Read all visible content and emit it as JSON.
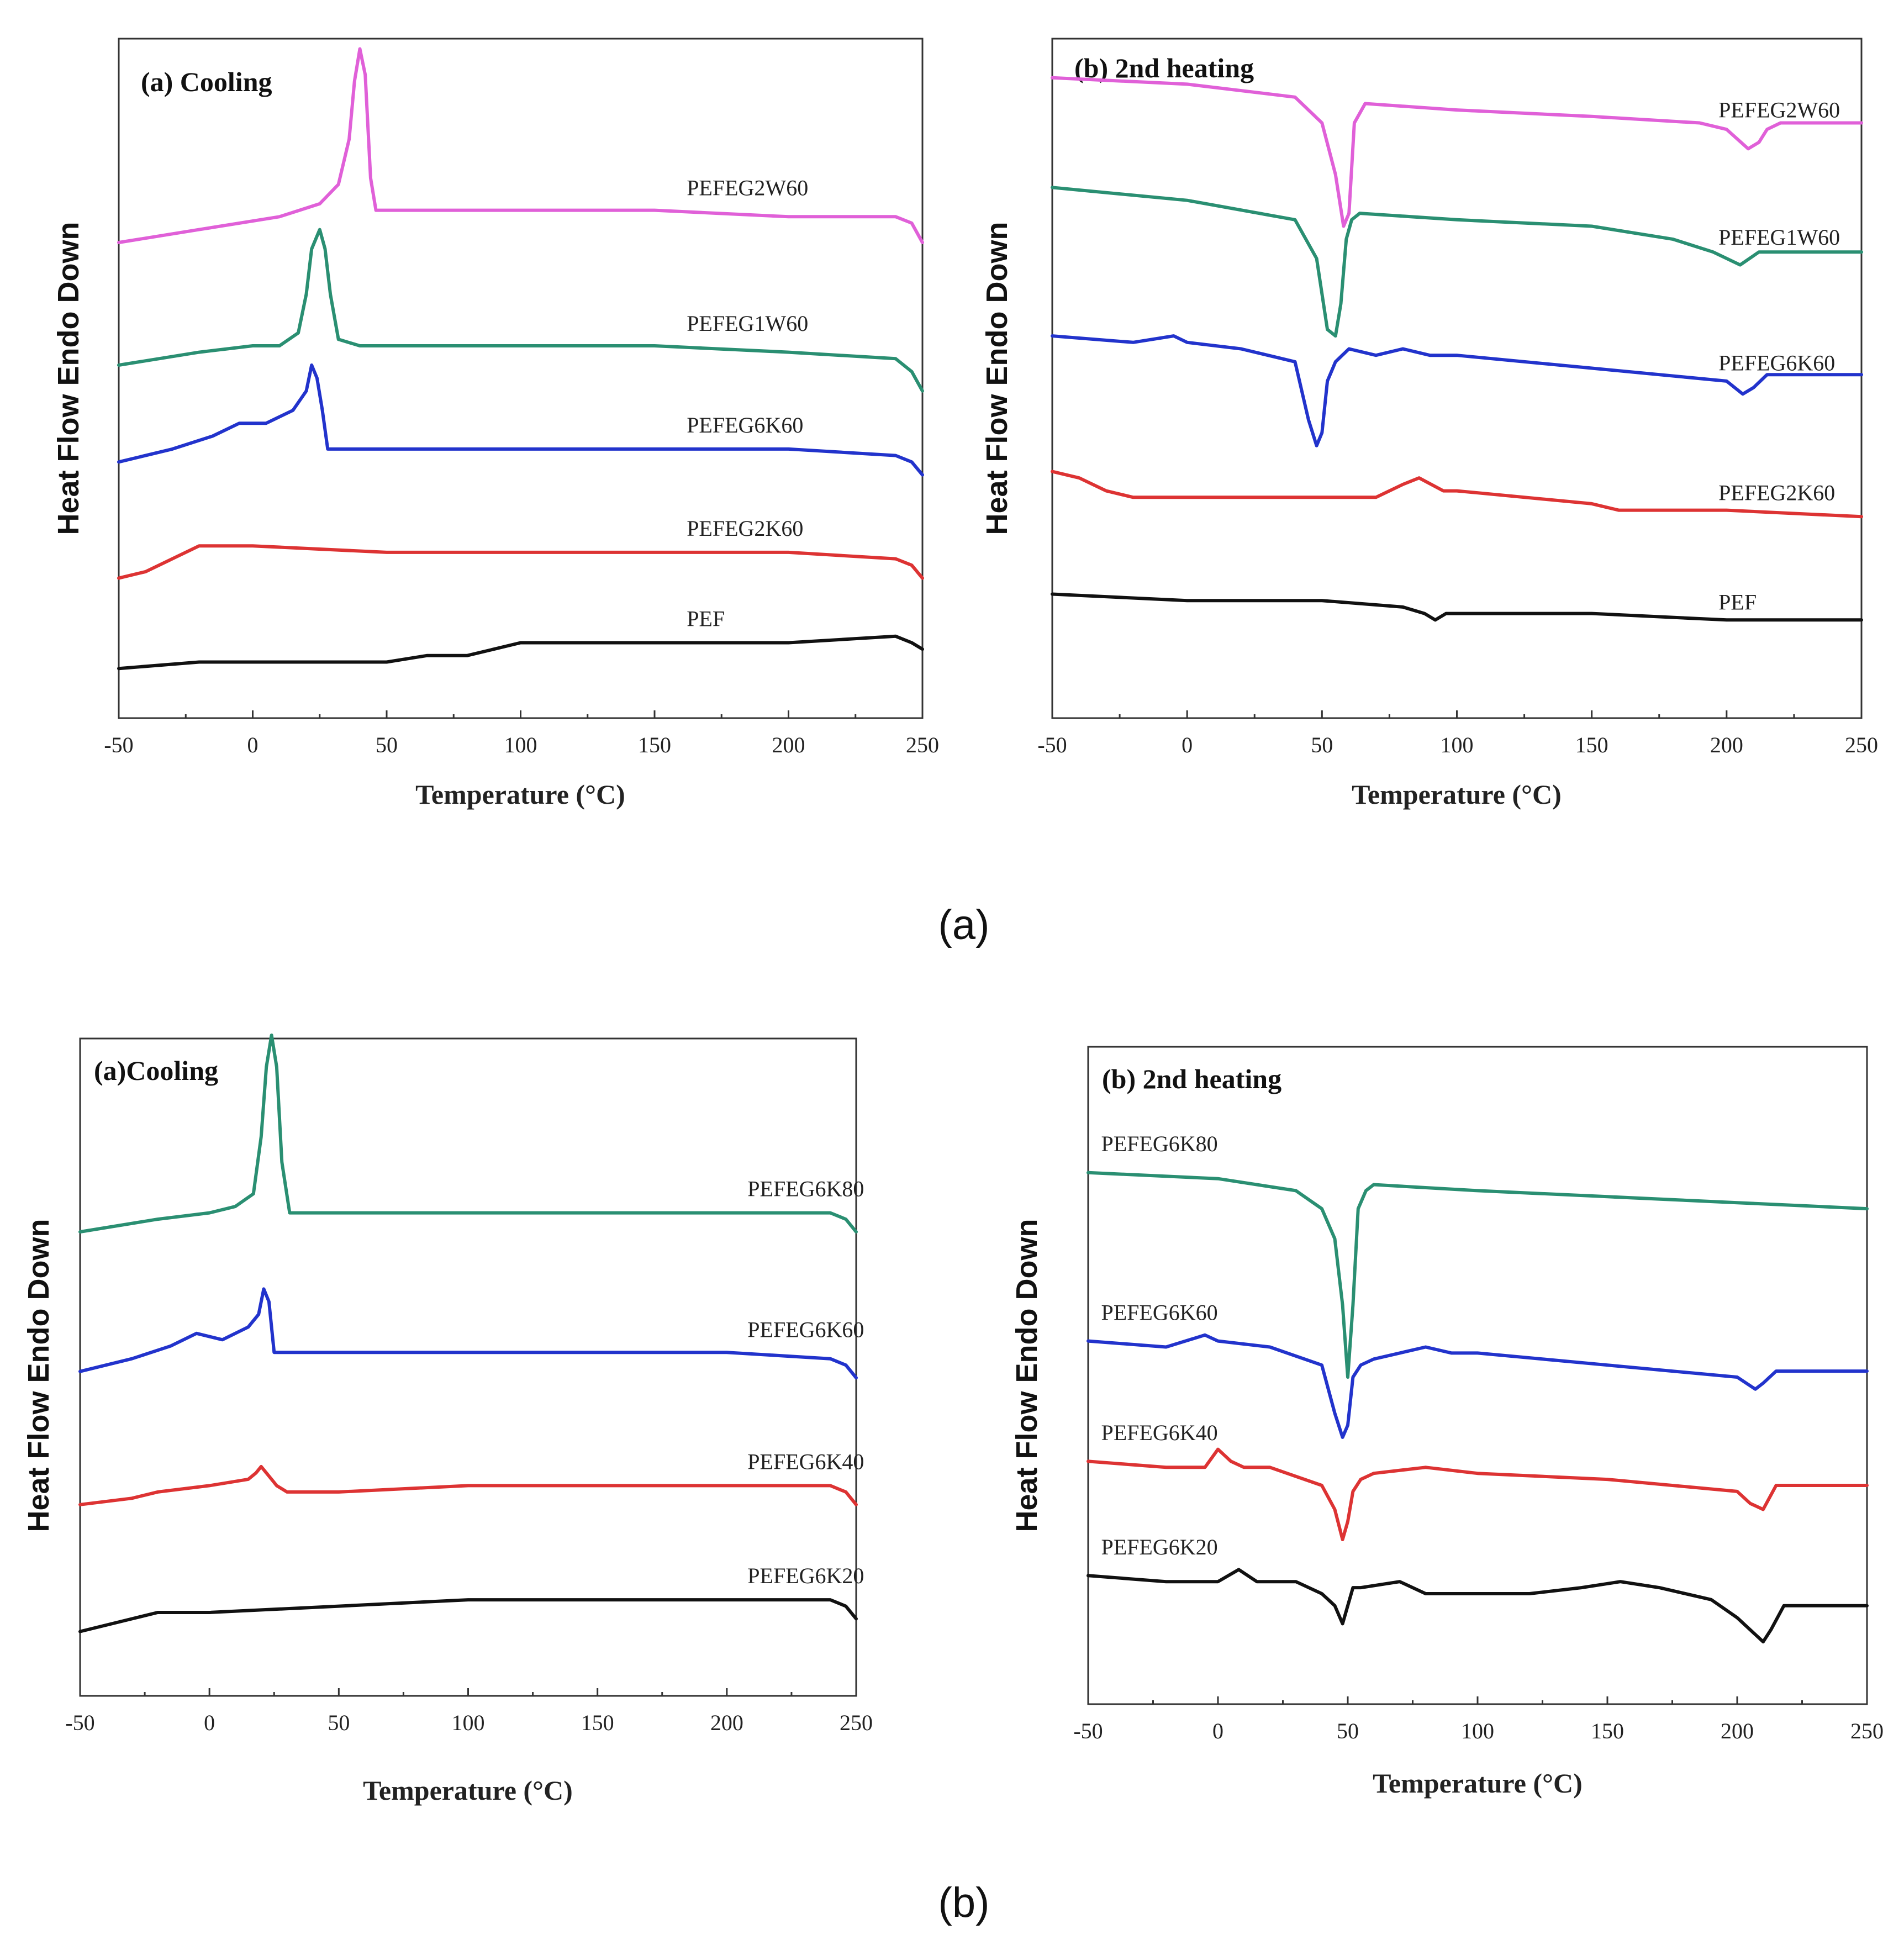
{
  "captions": [
    "(a)",
    "(b)"
  ],
  "chart_data": [
    {
      "type": "line",
      "title": "(a) Cooling",
      "xlabel": "Temperature (°C)",
      "ylabel": "Heat Flow Endo Down",
      "xlim": [
        -50,
        250
      ],
      "ylim": [
        0,
        100
      ],
      "xticks": [
        -50,
        0,
        50,
        100,
        150,
        200,
        250
      ],
      "grid": false,
      "series": [
        {
          "name": "PEFEG2W60",
          "color": "#e060d8",
          "label_x": 162,
          "x": [
            -50,
            -20,
            10,
            25,
            32,
            36,
            38,
            40,
            42,
            44,
            46,
            50,
            100,
            150,
            200,
            240,
            246,
            250
          ],
          "y": [
            70,
            72,
            74,
            76,
            79,
            86,
            95,
            100,
            96,
            80,
            75,
            75,
            75,
            75,
            74,
            74,
            73,
            70
          ]
        },
        {
          "name": "PEFEG1W60",
          "color": "#2a8f72",
          "label_x": 162,
          "x": [
            -50,
            -20,
            0,
            10,
            17,
            20,
            22,
            25,
            27,
            29,
            32,
            40,
            100,
            150,
            200,
            240,
            246,
            250
          ],
          "y": [
            51,
            53,
            54,
            54,
            56,
            62,
            69,
            72,
            69,
            62,
            55,
            54,
            54,
            54,
            53,
            52,
            50,
            47
          ]
        },
        {
          "name": "PEFEG6K60",
          "color": "#2233cc",
          "label_x": 162,
          "x": [
            -50,
            -30,
            -15,
            -5,
            5,
            15,
            20,
            22,
            24,
            26,
            28,
            50,
            100,
            150,
            200,
            240,
            246,
            250
          ],
          "y": [
            36,
            38,
            40,
            42,
            42,
            44,
            47,
            51,
            49,
            44,
            38,
            38,
            38,
            38,
            38,
            37,
            36,
            34
          ]
        },
        {
          "name": "PEFEG2K60",
          "color": "#dd3333",
          "label_x": 162,
          "x": [
            -50,
            -40,
            -30,
            -20,
            0,
            50,
            100,
            150,
            200,
            240,
            246,
            250
          ],
          "y": [
            18,
            19,
            21,
            23,
            23,
            22,
            22,
            22,
            22,
            21,
            20,
            18
          ]
        },
        {
          "name": "PEF",
          "color": "#111111",
          "label_x": 162,
          "x": [
            -50,
            -20,
            0,
            50,
            65,
            80,
            90,
            100,
            150,
            200,
            240,
            246,
            250
          ],
          "y": [
            4,
            5,
            5,
            5,
            6,
            6,
            7,
            8,
            8,
            8,
            9,
            8,
            7
          ]
        }
      ]
    },
    {
      "type": "line",
      "title": "(b) 2nd heating",
      "xlabel": "Temperature (°C)",
      "ylabel": "Heat Flow Endo Down",
      "xlim": [
        -50,
        250
      ],
      "ylim": [
        0,
        100
      ],
      "xticks": [
        -50,
        0,
        50,
        100,
        150,
        200,
        250
      ],
      "grid": false,
      "series": [
        {
          "name": "PEFEG2W60",
          "color": "#e060d8",
          "label_x": 197,
          "x": [
            -50,
            0,
            40,
            50,
            55,
            58,
            60,
            62,
            66,
            100,
            150,
            190,
            200,
            208,
            212,
            215,
            220,
            250
          ],
          "y": [
            95,
            94,
            92,
            88,
            80,
            72,
            74,
            88,
            91,
            90,
            89,
            88,
            87,
            84,
            85,
            87,
            88,
            88
          ]
        },
        {
          "name": "PEFEG1W60",
          "color": "#2a8f72",
          "label_x": 197,
          "x": [
            -50,
            0,
            40,
            48,
            52,
            55,
            57,
            59,
            61,
            64,
            100,
            150,
            180,
            195,
            205,
            212,
            220,
            250
          ],
          "y": [
            78,
            76,
            73,
            67,
            56,
            55,
            60,
            70,
            73,
            74,
            73,
            72,
            70,
            68,
            66,
            68,
            68,
            68
          ]
        },
        {
          "name": "PEFEG6K60",
          "color": "#2233cc",
          "label_x": 197,
          "x": [
            -50,
            -20,
            -5,
            0,
            20,
            40,
            45,
            48,
            50,
            52,
            55,
            60,
            70,
            80,
            90,
            100,
            150,
            200,
            206,
            210,
            215,
            250
          ],
          "y": [
            55,
            54,
            55,
            54,
            53,
            51,
            42,
            38,
            40,
            48,
            51,
            53,
            52,
            53,
            52,
            52,
            50,
            48,
            46,
            47,
            49,
            49
          ]
        },
        {
          "name": "PEFEG2K60",
          "color": "#dd3333",
          "label_x": 197,
          "x": [
            -50,
            -40,
            -30,
            -20,
            0,
            50,
            70,
            80,
            86,
            95,
            100,
            150,
            160,
            200,
            250
          ],
          "y": [
            34,
            33,
            31,
            30,
            30,
            30,
            30,
            32,
            33,
            31,
            31,
            29,
            28,
            28,
            27
          ]
        },
        {
          "name": "PEF",
          "color": "#111111",
          "label_x": 197,
          "x": [
            -50,
            0,
            50,
            80,
            88,
            92,
            96,
            100,
            150,
            200,
            250
          ],
          "y": [
            15,
            14,
            14,
            13,
            12,
            11,
            12,
            12,
            12,
            11,
            11
          ]
        }
      ]
    },
    {
      "type": "line",
      "title": "(a)Cooling",
      "xlabel": "Temperature (°C)",
      "ylabel": "Heat Flow Endo Down",
      "xlim": [
        -50,
        250
      ],
      "ylim": [
        0,
        100
      ],
      "xticks": [
        -50,
        0,
        50,
        100,
        150,
        200,
        250
      ],
      "grid": false,
      "series": [
        {
          "name": "PEFEG6K80",
          "color": "#2a8f72",
          "label_x": 208,
          "x": [
            -50,
            -20,
            0,
            10,
            17,
            20,
            22,
            24,
            26,
            28,
            31,
            50,
            100,
            150,
            200,
            240,
            246,
            250
          ],
          "y": [
            69,
            71,
            72,
            73,
            75,
            84,
            95,
            100,
            95,
            80,
            72,
            72,
            72,
            72,
            72,
            72,
            71,
            69
          ]
        },
        {
          "name": "PEFEG6K60",
          "color": "#2233cc",
          "label_x": 208,
          "x": [
            -50,
            -30,
            -15,
            -5,
            5,
            15,
            19,
            21,
            23,
            25,
            50,
            100,
            150,
            200,
            240,
            246,
            250
          ],
          "y": [
            47,
            49,
            51,
            53,
            52,
            54,
            56,
            60,
            58,
            50,
            50,
            50,
            50,
            50,
            49,
            48,
            46
          ]
        },
        {
          "name": "PEFEG6K40",
          "color": "#dd3333",
          "label_x": 208,
          "x": [
            -50,
            -30,
            -20,
            0,
            15,
            18,
            20,
            22,
            24,
            26,
            30,
            50,
            100,
            150,
            200,
            240,
            246,
            250
          ],
          "y": [
            26,
            27,
            28,
            29,
            30,
            31,
            32,
            31,
            30,
            29,
            28,
            28,
            29,
            29,
            29,
            29,
            28,
            26
          ]
        },
        {
          "name": "PEFEG6K20",
          "color": "#111111",
          "label_x": 208,
          "x": [
            -50,
            -30,
            -20,
            0,
            50,
            100,
            150,
            200,
            240,
            246,
            250
          ],
          "y": [
            6,
            8,
            9,
            9,
            10,
            11,
            11,
            11,
            11,
            10,
            8
          ]
        }
      ]
    },
    {
      "type": "line",
      "title": "(b) 2nd heating",
      "xlabel": "Temperature (°C)",
      "ylabel": "Heat Flow Endo Down",
      "xlim": [
        -50,
        250
      ],
      "ylim": [
        0,
        100
      ],
      "xticks": [
        -50,
        0,
        50,
        100,
        150,
        200,
        250
      ],
      "grid": false,
      "series": [
        {
          "name": "PEFEG6K80",
          "color": "#2a8f72",
          "label_x": -45,
          "x": [
            -50,
            0,
            30,
            40,
            45,
            48,
            50,
            52,
            54,
            57,
            60,
            100,
            150,
            200,
            250
          ],
          "y": [
            84,
            83,
            81,
            78,
            73,
            62,
            50,
            62,
            78,
            81,
            82,
            81,
            80,
            79,
            78
          ]
        },
        {
          "name": "PEFEG6K60",
          "color": "#2233cc",
          "label_x": -45,
          "x": [
            -50,
            -20,
            -5,
            0,
            20,
            40,
            45,
            48,
            50,
            52,
            55,
            60,
            70,
            80,
            90,
            100,
            150,
            200,
            207,
            210,
            215,
            250
          ],
          "y": [
            56,
            55,
            57,
            56,
            55,
            52,
            44,
            40,
            42,
            50,
            52,
            53,
            54,
            55,
            54,
            54,
            52,
            50,
            48,
            49,
            51,
            51
          ]
        },
        {
          "name": "PEFEG6K40",
          "color": "#dd3333",
          "label_x": -45,
          "x": [
            -50,
            -20,
            -5,
            0,
            5,
            10,
            20,
            40,
            45,
            48,
            50,
            52,
            55,
            60,
            80,
            100,
            150,
            200,
            205,
            210,
            215,
            250
          ],
          "y": [
            36,
            35,
            35,
            38,
            36,
            35,
            35,
            32,
            28,
            23,
            26,
            31,
            33,
            34,
            35,
            34,
            33,
            31,
            29,
            28,
            32,
            32
          ]
        },
        {
          "name": "PEFEG6K20",
          "color": "#111111",
          "label_x": -45,
          "x": [
            -50,
            -20,
            0,
            8,
            15,
            30,
            40,
            45,
            48,
            50,
            52,
            55,
            70,
            80,
            100,
            120,
            140,
            155,
            170,
            190,
            200,
            205,
            210,
            213,
            218,
            250
          ],
          "y": [
            17,
            16,
            16,
            18,
            16,
            16,
            14,
            12,
            9,
            12,
            15,
            15,
            16,
            14,
            14,
            14,
            15,
            16,
            15,
            13,
            10,
            8,
            6,
            8,
            12,
            12
          ]
        }
      ]
    }
  ]
}
